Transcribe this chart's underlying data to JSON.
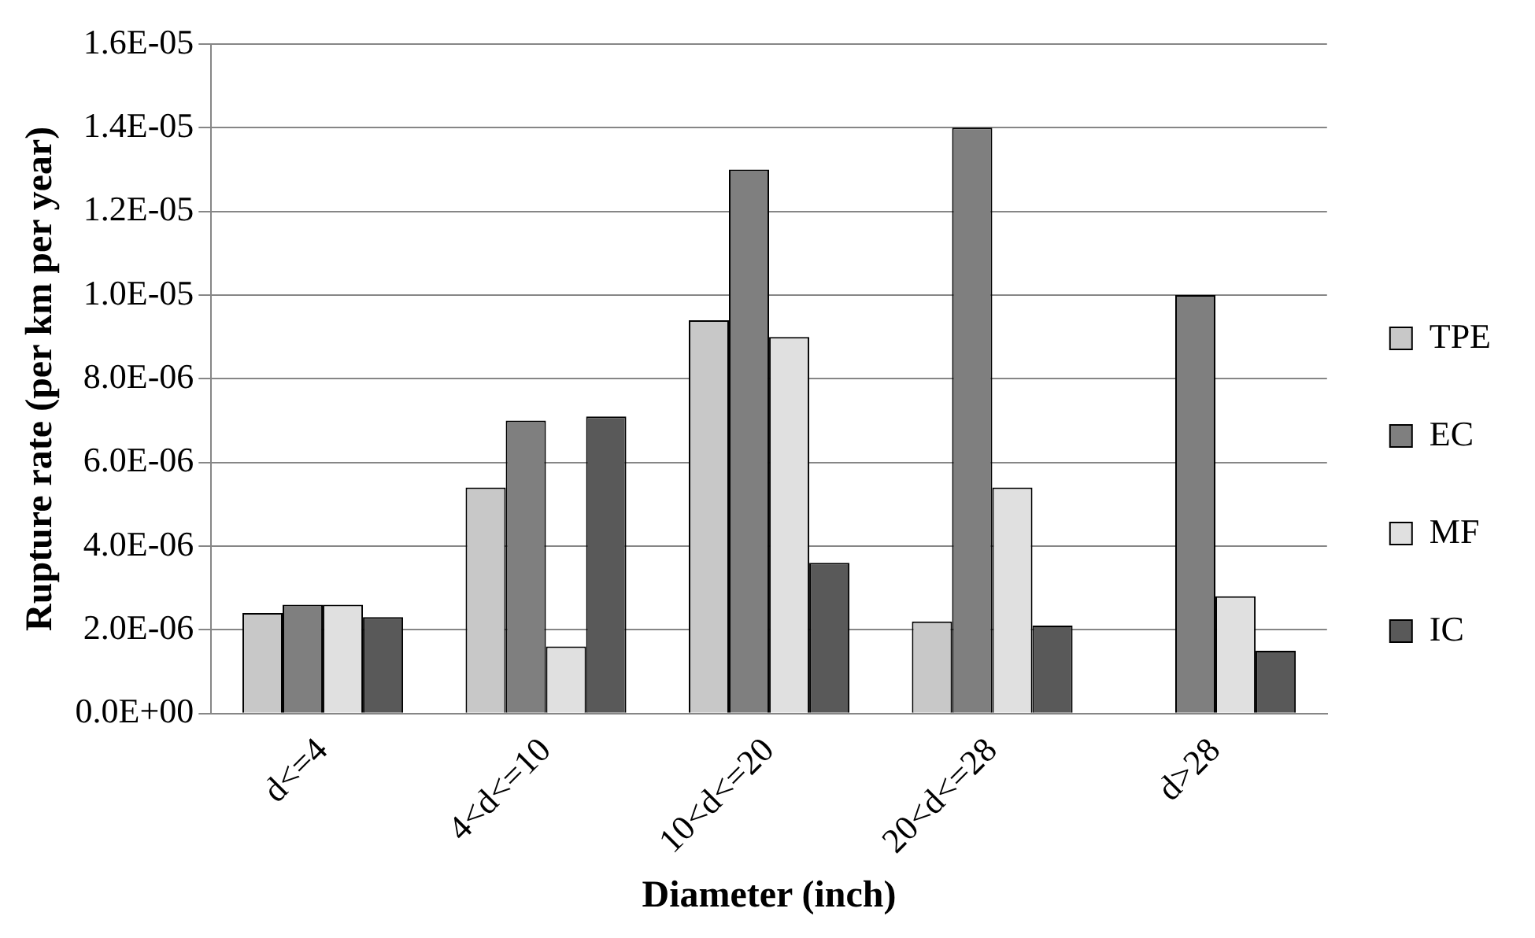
{
  "chart_data": {
    "type": "bar",
    "xlabel": "Diameter (inch)",
    "ylabel": "Rupture rate (per km per year)",
    "categories": [
      "d<=4",
      "4<d<=10",
      "10<d<=20",
      "20<d<=28",
      "d>28"
    ],
    "series": [
      {
        "name": "TPE",
        "color": "#c8c8c8",
        "values": [
          2.4e-06,
          5.4e-06,
          9.4e-06,
          2.2e-06,
          null
        ]
      },
      {
        "name": "EC",
        "color": "#7f7f7f",
        "values": [
          2.6e-06,
          7e-06,
          1.3e-05,
          1.4e-05,
          1e-05
        ]
      },
      {
        "name": "MF",
        "color": "#e0e0e0",
        "values": [
          2.6e-06,
          1.6e-06,
          9e-06,
          5.4e-06,
          2.8e-06
        ]
      },
      {
        "name": "IC",
        "color": "#595959",
        "values": [
          2.3e-06,
          7.1e-06,
          3.6e-06,
          2.1e-06,
          1.5e-06
        ]
      }
    ],
    "ylim": [
      0,
      1.6e-05
    ],
    "yticks": [
      {
        "value": 0,
        "label": "0.0E+00"
      },
      {
        "value": 2e-06,
        "label": "2.0E-06"
      },
      {
        "value": 4e-06,
        "label": "4.0E-06"
      },
      {
        "value": 6e-06,
        "label": "6.0E-06"
      },
      {
        "value": 8e-06,
        "label": "8.0E-06"
      },
      {
        "value": 1e-05,
        "label": "1.0E-05"
      },
      {
        "value": 1.2e-05,
        "label": "1.2E-05"
      },
      {
        "value": 1.4e-05,
        "label": "1.4E-05"
      },
      {
        "value": 1.6e-05,
        "label": "1.6E-05"
      }
    ],
    "grid": "y",
    "legend": "right"
  }
}
